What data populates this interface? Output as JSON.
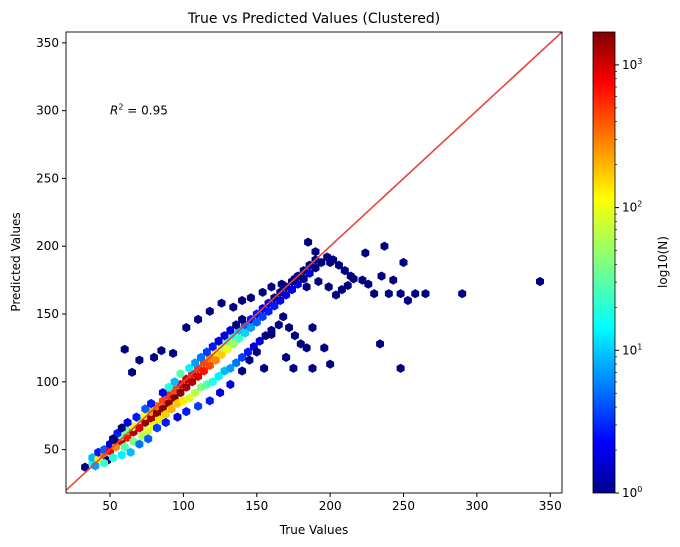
{
  "chart_data": {
    "type": "hexbin",
    "title": "True vs Predicted Values (Clustered)",
    "xlabel": "True Values",
    "ylabel": "Predicted Values",
    "xlim": [
      20,
      358
    ],
    "ylim": [
      18,
      358
    ],
    "xticks": [
      50,
      100,
      150,
      200,
      250,
      300,
      350
    ],
    "yticks": [
      50,
      100,
      150,
      200,
      250,
      300,
      350
    ],
    "identity_line": {
      "from": [
        20,
        20
      ],
      "to": [
        358,
        358
      ],
      "color": "#e8453c"
    },
    "annotation": {
      "base": "R",
      "sup": "2",
      "rest": " = 0.95",
      "x": 50,
      "y": 300
    },
    "colorbar": {
      "label": "log10(N)",
      "scale": "log",
      "min": 1,
      "max": 1700,
      "ticks": [
        {
          "value": 1,
          "base": "10",
          "exp": "0"
        },
        {
          "value": 10,
          "base": "10",
          "exp": "1"
        },
        {
          "value": 100,
          "base": "10",
          "exp": "2"
        },
        {
          "value": 1000,
          "base": "10",
          "exp": "3"
        }
      ],
      "colormap": "jet"
    },
    "hexbins": [
      [
        33,
        37,
        1
      ],
      [
        38,
        40,
        20
      ],
      [
        38,
        44,
        10
      ],
      [
        42,
        43,
        120
      ],
      [
        42,
        48,
        3
      ],
      [
        46,
        46,
        300
      ],
      [
        46,
        50,
        5
      ],
      [
        48,
        42,
        1
      ],
      [
        50,
        49,
        700
      ],
      [
        50,
        54,
        2
      ],
      [
        54,
        52,
        250
      ],
      [
        54,
        57,
        1
      ],
      [
        58,
        56,
        1000
      ],
      [
        58,
        60,
        40
      ],
      [
        62,
        59,
        600
      ],
      [
        62,
        64,
        40
      ],
      [
        66,
        63,
        1200
      ],
      [
        66,
        67,
        80
      ],
      [
        70,
        66,
        900
      ],
      [
        70,
        72,
        60
      ],
      [
        74,
        70,
        1500
      ],
      [
        74,
        75,
        100
      ],
      [
        78,
        73,
        1300
      ],
      [
        78,
        78,
        200
      ],
      [
        82,
        77,
        1500
      ],
      [
        82,
        82,
        300
      ],
      [
        86,
        80,
        1700
      ],
      [
        86,
        86,
        400
      ],
      [
        90,
        84,
        1500
      ],
      [
        90,
        90,
        500
      ],
      [
        94,
        88,
        1700
      ],
      [
        94,
        94,
        400
      ],
      [
        98,
        92,
        1600
      ],
      [
        98,
        98,
        800
      ],
      [
        102,
        96,
        1400
      ],
      [
        102,
        102,
        900
      ],
      [
        106,
        100,
        1200
      ],
      [
        106,
        106,
        700
      ],
      [
        110,
        104,
        900
      ],
      [
        110,
        110,
        500
      ],
      [
        114,
        108,
        600
      ],
      [
        114,
        114,
        400
      ],
      [
        118,
        112,
        400
      ],
      [
        118,
        118,
        250
      ],
      [
        122,
        116,
        250
      ],
      [
        122,
        122,
        120
      ],
      [
        126,
        120,
        150
      ],
      [
        126,
        126,
        60
      ],
      [
        130,
        124,
        90
      ],
      [
        130,
        130,
        35
      ],
      [
        134,
        128,
        50
      ],
      [
        134,
        134,
        20
      ],
      [
        138,
        132,
        25
      ],
      [
        138,
        138,
        10
      ],
      [
        142,
        136,
        12
      ],
      [
        142,
        142,
        5
      ],
      [
        146,
        140,
        8
      ],
      [
        146,
        146,
        3
      ],
      [
        150,
        144,
        5
      ],
      [
        150,
        150,
        3
      ],
      [
        154,
        148,
        4
      ],
      [
        154,
        154,
        2
      ],
      [
        158,
        152,
        3
      ],
      [
        158,
        158,
        2
      ],
      [
        162,
        156,
        3
      ],
      [
        162,
        162,
        1
      ],
      [
        166,
        160,
        2
      ],
      [
        166,
        166,
        1
      ],
      [
        170,
        164,
        2
      ],
      [
        170,
        170,
        1
      ],
      [
        174,
        168,
        2
      ],
      [
        174,
        174,
        1
      ],
      [
        178,
        172,
        2
      ],
      [
        178,
        178,
        1
      ],
      [
        182,
        176,
        1
      ],
      [
        182,
        182,
        1
      ],
      [
        186,
        180,
        2
      ],
      [
        186,
        186,
        1
      ],
      [
        190,
        184,
        1
      ],
      [
        190,
        190,
        1
      ],
      [
        194,
        188,
        1
      ],
      [
        198,
        192,
        1
      ],
      [
        202,
        190,
        1
      ],
      [
        206,
        186,
        1
      ],
      [
        210,
        182,
        1
      ],
      [
        214,
        178,
        1
      ],
      [
        74,
        80,
        5
      ],
      [
        78,
        84,
        3
      ],
      [
        86,
        92,
        2
      ],
      [
        90,
        96,
        20
      ],
      [
        94,
        100,
        10
      ],
      [
        98,
        106,
        30
      ],
      [
        104,
        110,
        15
      ],
      [
        108,
        114,
        8
      ],
      [
        112,
        118,
        6
      ],
      [
        116,
        122,
        4
      ],
      [
        120,
        126,
        3
      ],
      [
        124,
        130,
        2
      ],
      [
        128,
        134,
        2
      ],
      [
        132,
        138,
        2
      ],
      [
        136,
        142,
        1
      ],
      [
        140,
        146,
        1
      ],
      [
        60,
        52,
        30
      ],
      [
        66,
        56,
        40
      ],
      [
        72,
        60,
        60
      ],
      [
        76,
        64,
        80
      ],
      [
        80,
        68,
        100
      ],
      [
        84,
        72,
        120
      ],
      [
        88,
        76,
        150
      ],
      [
        92,
        80,
        180
      ],
      [
        96,
        84,
        160
      ],
      [
        100,
        86,
        120
      ],
      [
        104,
        88,
        80
      ],
      [
        108,
        92,
        60
      ],
      [
        112,
        96,
        40
      ],
      [
        116,
        98,
        30
      ],
      [
        120,
        100,
        20
      ],
      [
        124,
        104,
        15
      ],
      [
        128,
        108,
        10
      ],
      [
        132,
        110,
        8
      ],
      [
        136,
        114,
        6
      ],
      [
        140,
        118,
        4
      ],
      [
        144,
        122,
        3
      ],
      [
        148,
        126,
        2
      ],
      [
        152,
        130,
        2
      ],
      [
        156,
        134,
        1
      ],
      [
        160,
        138,
        1
      ],
      [
        60,
        124,
        1
      ],
      [
        65,
        107,
        1
      ],
      [
        70,
        116,
        1
      ],
      [
        80,
        118,
        1
      ],
      [
        85,
        123,
        1
      ],
      [
        93,
        121,
        1
      ],
      [
        102,
        140,
        1
      ],
      [
        110,
        146,
        1
      ],
      [
        118,
        152,
        1
      ],
      [
        126,
        158,
        1
      ],
      [
        134,
        155,
        1
      ],
      [
        140,
        160,
        1
      ],
      [
        146,
        162,
        1
      ],
      [
        154,
        166,
        1
      ],
      [
        160,
        170,
        1
      ],
      [
        167,
        172,
        1
      ],
      [
        176,
        176,
        1
      ],
      [
        184,
        170,
        1
      ],
      [
        192,
        174,
        1
      ],
      [
        199,
        170,
        1
      ],
      [
        204,
        164,
        1
      ],
      [
        208,
        168,
        1
      ],
      [
        212,
        171,
        1
      ],
      [
        216,
        176,
        1
      ],
      [
        222,
        175,
        1
      ],
      [
        226,
        172,
        1
      ],
      [
        230,
        165,
        1
      ],
      [
        235,
        178,
        1
      ],
      [
        240,
        165,
        1
      ],
      [
        243,
        175,
        1
      ],
      [
        248,
        165,
        1
      ],
      [
        253,
        160,
        1
      ],
      [
        258,
        165,
        1
      ],
      [
        265,
        165,
        1
      ],
      [
        290,
        165,
        1
      ],
      [
        343,
        174,
        1
      ],
      [
        224,
        195,
        1
      ],
      [
        237,
        200,
        1
      ],
      [
        250,
        188,
        1
      ],
      [
        185,
        203,
        1
      ],
      [
        190,
        196,
        1
      ],
      [
        200,
        188,
        1
      ],
      [
        168,
        148,
        1
      ],
      [
        172,
        140,
        1
      ],
      [
        176,
        134,
        1
      ],
      [
        180,
        128,
        1
      ],
      [
        184,
        125,
        1
      ],
      [
        188,
        140,
        1
      ],
      [
        196,
        125,
        1
      ],
      [
        234,
        128,
        1
      ],
      [
        248,
        110,
        1
      ],
      [
        200,
        113,
        1
      ],
      [
        188,
        110,
        1
      ],
      [
        175,
        110,
        1
      ],
      [
        170,
        118,
        1
      ],
      [
        160,
        135,
        1
      ],
      [
        165,
        142,
        1
      ],
      [
        150,
        122,
        1
      ],
      [
        155,
        110,
        1
      ],
      [
        145,
        116,
        1
      ],
      [
        140,
        108,
        1
      ],
      [
        132,
        98,
        2
      ],
      [
        125,
        92,
        2
      ],
      [
        118,
        86,
        3
      ],
      [
        110,
        82,
        4
      ],
      [
        102,
        78,
        3
      ],
      [
        96,
        74,
        2
      ],
      [
        88,
        70,
        3
      ],
      [
        82,
        66,
        4
      ],
      [
        76,
        58,
        5
      ],
      [
        70,
        54,
        6
      ],
      [
        64,
        48,
        10
      ],
      [
        58,
        46,
        15
      ],
      [
        52,
        44,
        20
      ],
      [
        46,
        40,
        25
      ],
      [
        40,
        38,
        8
      ],
      [
        55,
        62,
        3
      ],
      [
        62,
        70,
        2
      ],
      [
        68,
        74,
        3
      ],
      [
        58,
        66,
        1
      ],
      [
        52,
        58,
        1
      ]
    ]
  }
}
